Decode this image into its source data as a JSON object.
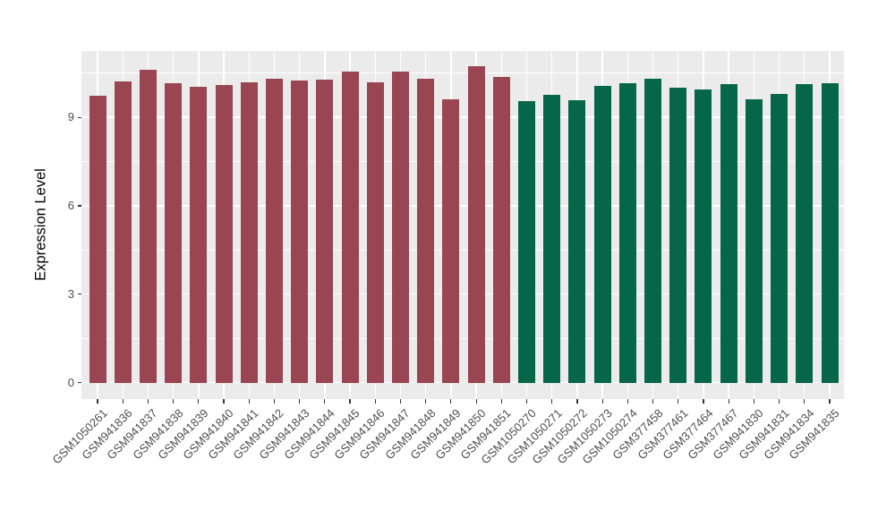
{
  "chart_data": {
    "type": "bar",
    "title": "",
    "xlabel": "",
    "ylabel": "Expression Level",
    "ylim": [
      -0.56,
      11.25
    ],
    "ytick_values": [
      0,
      3,
      6,
      9
    ],
    "ytick_labels": [
      "0",
      "3",
      "6",
      "9"
    ],
    "major_gridlines": [
      0,
      3,
      6,
      9
    ],
    "minor_gridlines": [
      1.5,
      4.5,
      7.5,
      10.5
    ],
    "grid": true,
    "legend_position": "none",
    "panel_background": "#EBEBEB",
    "gridline_color": "#FFFFFF",
    "axis_text_color": "#4D4D4D",
    "tick_mark_color": "#333333",
    "group_colors": {
      "group1": "#9A4552",
      "group2": "#066649"
    },
    "categories": [
      "GSM1050261",
      "GSM941836",
      "GSM941837",
      "GSM941838",
      "GSM941839",
      "GSM941840",
      "GSM941841",
      "GSM941842",
      "GSM941843",
      "GSM941844",
      "GSM941845",
      "GSM941846",
      "GSM941847",
      "GSM941848",
      "GSM941849",
      "GSM941850",
      "GSM941851",
      "GSM1050270",
      "GSM1050271",
      "GSM1050272",
      "GSM1050273",
      "GSM1050274",
      "GSM377458",
      "GSM377461",
      "GSM377464",
      "GSM377467",
      "GSM941830",
      "GSM941831",
      "GSM941834",
      "GSM941835"
    ],
    "values": [
      9.74,
      10.22,
      10.62,
      10.16,
      10.04,
      10.11,
      10.19,
      10.3,
      10.25,
      10.28,
      10.55,
      10.19,
      10.56,
      10.31,
      9.6,
      10.73,
      10.37,
      9.56,
      9.76,
      9.57,
      10.08,
      10.15,
      10.3,
      10.01,
      9.94,
      10.13,
      9.62,
      9.8,
      10.12,
      10.15
    ],
    "bar_groups": [
      "group1",
      "group1",
      "group1",
      "group1",
      "group1",
      "group1",
      "group1",
      "group1",
      "group1",
      "group1",
      "group1",
      "group1",
      "group1",
      "group1",
      "group1",
      "group1",
      "group1",
      "group2",
      "group2",
      "group2",
      "group2",
      "group2",
      "group2",
      "group2",
      "group2",
      "group2",
      "group2",
      "group2",
      "group2",
      "group2"
    ]
  }
}
